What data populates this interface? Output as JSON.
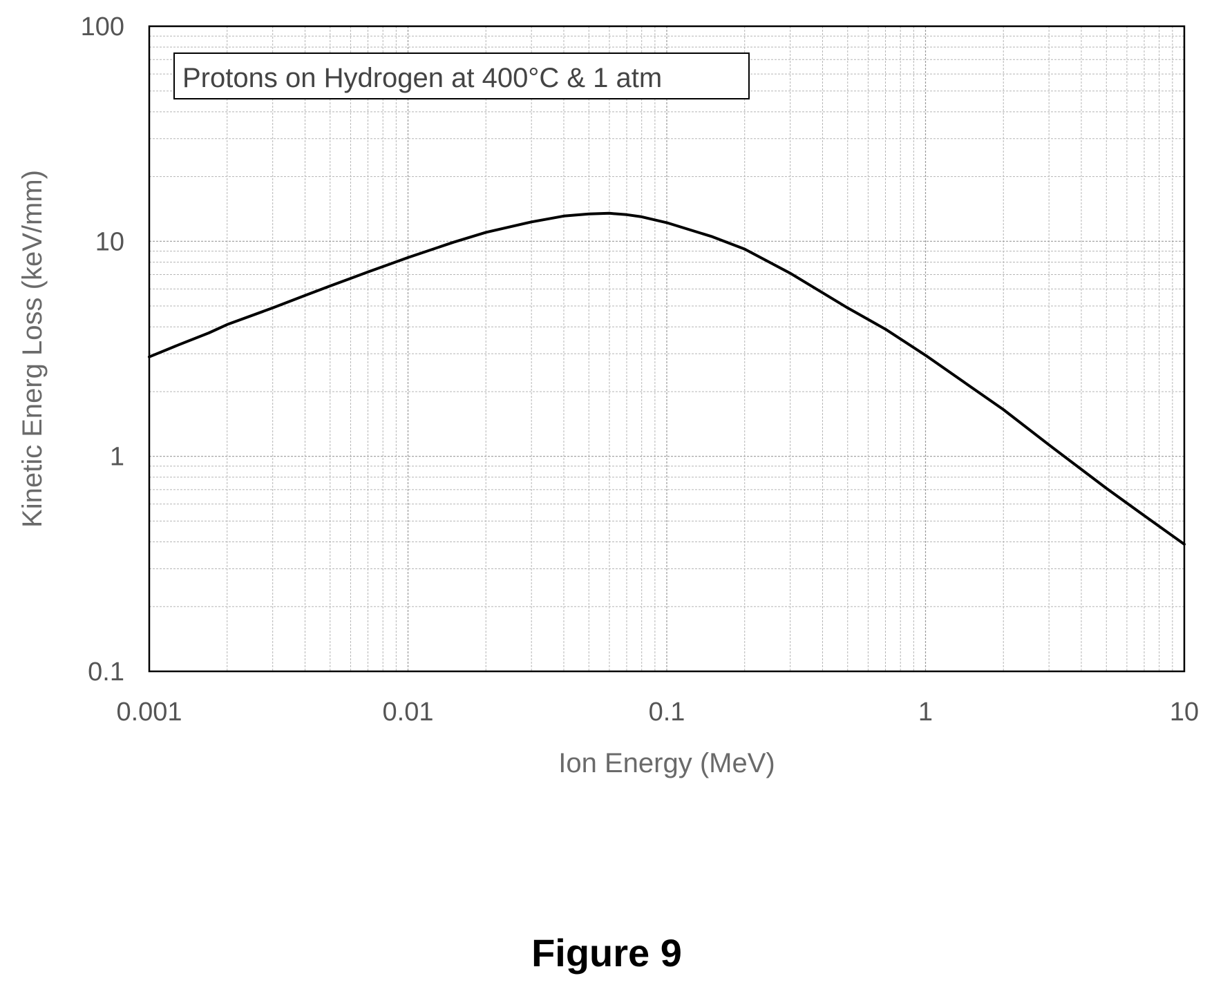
{
  "chart_data": {
    "type": "line",
    "title": "",
    "legend_text": "Protons on Hydrogen at 400°C & 1 atm",
    "legend_placement": "top-left",
    "xlabel": "Ion Energy (MeV)",
    "ylabel": "Kinetic Energ Loss (keV/mm)",
    "xscale": "log",
    "yscale": "log",
    "xlim": [
      0.001,
      10
    ],
    "ylim": [
      0.1,
      100
    ],
    "grid": true,
    "x_ticks": [
      {
        "value": 0.001,
        "label": "0.001"
      },
      {
        "value": 0.01,
        "label": "0.01"
      },
      {
        "value": 0.1,
        "label": "0.1"
      },
      {
        "value": 1,
        "label": "1"
      },
      {
        "value": 10,
        "label": "10"
      }
    ],
    "y_ticks": [
      {
        "value": 0.1,
        "label": "0.1"
      },
      {
        "value": 1,
        "label": "1"
      },
      {
        "value": 10,
        "label": "10"
      },
      {
        "value": 100,
        "label": "100"
      }
    ],
    "series": [
      {
        "points": [
          [
            0.001,
            2.9
          ],
          [
            0.0013,
            3.3
          ],
          [
            0.0017,
            3.75
          ],
          [
            0.002,
            4.1
          ],
          [
            0.003,
            4.9
          ],
          [
            0.004,
            5.6
          ],
          [
            0.005,
            6.2
          ],
          [
            0.007,
            7.2
          ],
          [
            0.01,
            8.4
          ],
          [
            0.015,
            9.9
          ],
          [
            0.02,
            11.0
          ],
          [
            0.03,
            12.3
          ],
          [
            0.04,
            13.1
          ],
          [
            0.05,
            13.4
          ],
          [
            0.06,
            13.5
          ],
          [
            0.07,
            13.3
          ],
          [
            0.08,
            13.0
          ],
          [
            0.1,
            12.2
          ],
          [
            0.15,
            10.5
          ],
          [
            0.2,
            9.2
          ],
          [
            0.3,
            7.1
          ],
          [
            0.5,
            4.9
          ],
          [
            0.7,
            3.9
          ],
          [
            1,
            2.95
          ],
          [
            2,
            1.65
          ],
          [
            3,
            1.13
          ],
          [
            5,
            0.71
          ],
          [
            7,
            0.53
          ],
          [
            10,
            0.39
          ]
        ]
      }
    ]
  },
  "figure_caption": "Figure 9"
}
